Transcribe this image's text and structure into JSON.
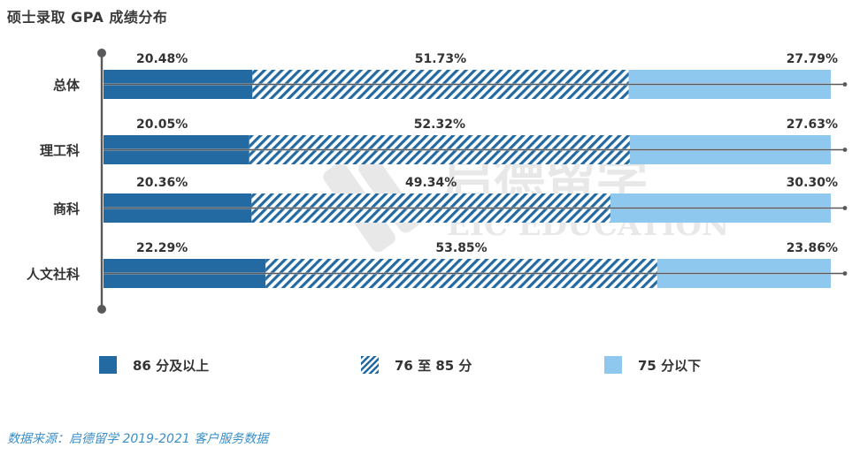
{
  "title": "硕士录取 GPA 成绩分布",
  "source": "数据来源：启德留学 2019-2021 客户服务数据",
  "watermark": {
    "main": "启德留学",
    "sub": "EIC EDUCATION"
  },
  "colors": {
    "high": "#236aa2",
    "mid_stripe": "#236aa2",
    "low": "#8ec8ee",
    "axis": "#58595b",
    "label": "#333333"
  },
  "chart_data": {
    "type": "bar",
    "orientation": "horizontal",
    "stacked": true,
    "percent": true,
    "title": "硕士录取 GPA 成绩分布",
    "categories": [
      "总体",
      "理工科",
      "商科",
      "人文社科"
    ],
    "series": [
      {
        "name": "86 分及以上",
        "values": [
          20.48,
          20.05,
          20.36,
          22.29
        ],
        "labels": [
          "20.48%",
          "20.05%",
          "20.36%",
          "22.29%"
        ]
      },
      {
        "name": "76 至 85 分",
        "values": [
          51.73,
          52.32,
          49.34,
          53.85
        ],
        "labels": [
          "51.73%",
          "52.32%",
          "49.34%",
          "53.85%"
        ]
      },
      {
        "name": "75 分以下",
        "values": [
          27.79,
          27.63,
          30.3,
          23.86
        ],
        "labels": [
          "27.79%",
          "27.63%",
          "30.30%",
          "23.86%"
        ]
      }
    ],
    "xlim": [
      0,
      100
    ],
    "legend_position": "bottom"
  }
}
